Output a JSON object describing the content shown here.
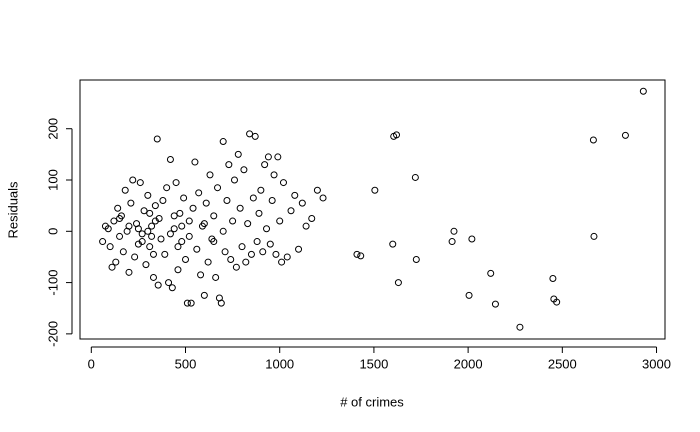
{
  "chart_data": {
    "type": "scatter",
    "xlabel": "# of crimes",
    "ylabel": "Residuals",
    "xlim": [
      -60,
      3045
    ],
    "ylim": [
      -210,
      295
    ],
    "xticks": [
      0,
      500,
      1000,
      1500,
      2000,
      2500,
      3000
    ],
    "yticks": [
      -200,
      -100,
      0,
      100,
      200
    ],
    "color": "#000000",
    "x": [
      60,
      75,
      90,
      100,
      110,
      120,
      130,
      140,
      150,
      160,
      170,
      180,
      190,
      200,
      210,
      220,
      230,
      240,
      250,
      260,
      270,
      280,
      290,
      300,
      310,
      320,
      330,
      340,
      350,
      355,
      360,
      370,
      380,
      390,
      400,
      410,
      420,
      430,
      440,
      450,
      460,
      470,
      480,
      490,
      500,
      510,
      520,
      530,
      540,
      550,
      560,
      570,
      580,
      590,
      600,
      610,
      620,
      630,
      640,
      650,
      660,
      670,
      680,
      690,
      700,
      710,
      720,
      730,
      740,
      750,
      760,
      770,
      780,
      790,
      800,
      810,
      820,
      830,
      840,
      850,
      860,
      870,
      880,
      890,
      900,
      910,
      920,
      930,
      940,
      950,
      960,
      970,
      980,
      990,
      1000,
      1010,
      1020,
      1040,
      1060,
      1080,
      1100,
      1120,
      1140,
      1170,
      1200,
      1230,
      300,
      320,
      340,
      310,
      330,
      420,
      440,
      460,
      480,
      250,
      270,
      200,
      150,
      520,
      600,
      650,
      700,
      1410,
      1430,
      1505,
      1600,
      1605,
      1620,
      1630,
      1720,
      1725,
      1915,
      1925,
      2005,
      2020,
      2120,
      2145,
      2275,
      2450,
      2455,
      2470,
      2665,
      2668,
      2835,
      2930
    ],
    "y": [
      -20,
      10,
      5,
      -30,
      -70,
      20,
      -60,
      45,
      -10,
      30,
      -40,
      80,
      0,
      -80,
      55,
      100,
      -50,
      15,
      -25,
      95,
      -5,
      40,
      -65,
      70,
      -30,
      10,
      -90,
      50,
      180,
      -105,
      25,
      -15,
      60,
      -45,
      85,
      -100,
      140,
      -110,
      5,
      95,
      -75,
      35,
      -20,
      65,
      -55,
      -140,
      20,
      -140,
      45,
      135,
      -35,
      75,
      -85,
      10,
      -125,
      55,
      -60,
      110,
      -15,
      30,
      -90,
      85,
      -130,
      -140,
      175,
      -40,
      60,
      130,
      -55,
      20,
      100,
      -70,
      150,
      45,
      -30,
      120,
      -60,
      15,
      190,
      -45,
      65,
      185,
      -20,
      35,
      80,
      -40,
      130,
      5,
      145,
      -25,
      60,
      110,
      -45,
      145,
      20,
      -60,
      95,
      -50,
      40,
      70,
      -35,
      55,
      10,
      25,
      80,
      65,
      0,
      -10,
      20,
      35,
      -45,
      -5,
      30,
      -30,
      10,
      5,
      -20,
      10,
      25,
      -10,
      15,
      -20,
      0,
      -45,
      -48,
      80,
      -25,
      185,
      188,
      -100,
      105,
      -55,
      -20,
      0,
      -125,
      -15,
      -82,
      -142,
      -187,
      -92,
      -132,
      -138,
      178,
      -10,
      187,
      273
    ]
  }
}
